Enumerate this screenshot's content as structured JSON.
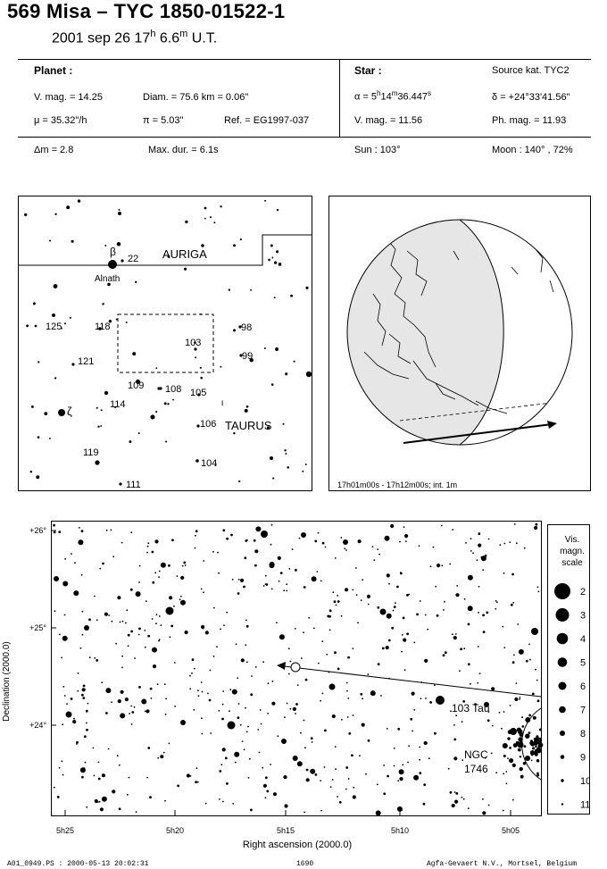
{
  "header": {
    "title": "569 Misa  –  TYC 1850-01522-1",
    "date_prefix": "2001 sep 26  17",
    "hour_unit": "h",
    "minutes": " 6.6",
    "minute_unit": "m",
    "time_suffix": " U.T."
  },
  "planet": {
    "heading": "Planet :",
    "vmag": "V. mag. = 14.25",
    "diam": "Diam. = 75.6 km = 0.06\"",
    "mu": "μ =  35.32\"/h",
    "pi": "π =  5.03\"",
    "ref": "Ref. = EG1997-037"
  },
  "star": {
    "heading": "Star :",
    "source": "Source kat.  TYC2",
    "alpha_prefix": "α =  5",
    "alpha_h": "h",
    "alpha_m_val": "14",
    "alpha_m": "m",
    "alpha_s_val": "36.447",
    "alpha_s": "s",
    "delta": "δ = +24°33'41.56\"",
    "vmag": "V. mag. = 11.56",
    "phmag": "Ph. mag. = 11.93"
  },
  "summary": {
    "dm": "Δm = 2.8",
    "maxdur": "Max. dur. = 6.1s",
    "sun": "Sun : 103°",
    "moon": "Moon : 140° , 72%"
  },
  "finder": {
    "auriga": "AURIGA",
    "taurus": "TAURUS",
    "alnath": "Alnath",
    "beta": "β",
    "zeta": "ζ",
    "iota": "ι",
    "labels": {
      "l22": "22",
      "l98": "98",
      "l99": "99",
      "l103": "103",
      "l104": "104",
      "l105": "105",
      "l106": "106",
      "l108": "108",
      "l109": "109",
      "l111": "111",
      "l114": "114",
      "l118": "118",
      "l119": "119",
      "l121": "121",
      "l125": "125"
    }
  },
  "globe": {
    "caption": "17h01m00s - 17h12m00s; int.  1m"
  },
  "skychart": {
    "x_axis_label": "Right ascension (2000.0)",
    "y_axis_label": "Declination (2000.0)",
    "x_ticks": [
      "5h25",
      "5h20",
      "5h15",
      "5h10",
      "5h05"
    ],
    "y_ticks": [
      "+26°",
      "+25°",
      "+24°"
    ],
    "star_label": "103 Tau",
    "ngc_line1": "NGC",
    "ngc_line2": "1746"
  },
  "legend": {
    "title1": "Vis.",
    "title2": "magn.",
    "title3": "scale",
    "mags": [
      "2",
      "3",
      "4",
      "5",
      "6",
      "7",
      "8",
      "9",
      "10",
      "11"
    ]
  },
  "footer": {
    "left": "A01_0949.PS : 2000-05-13 20:02:31",
    "center": "1690",
    "right": "Agfa-Gevaert N.V., Mortsel, Belgium"
  }
}
